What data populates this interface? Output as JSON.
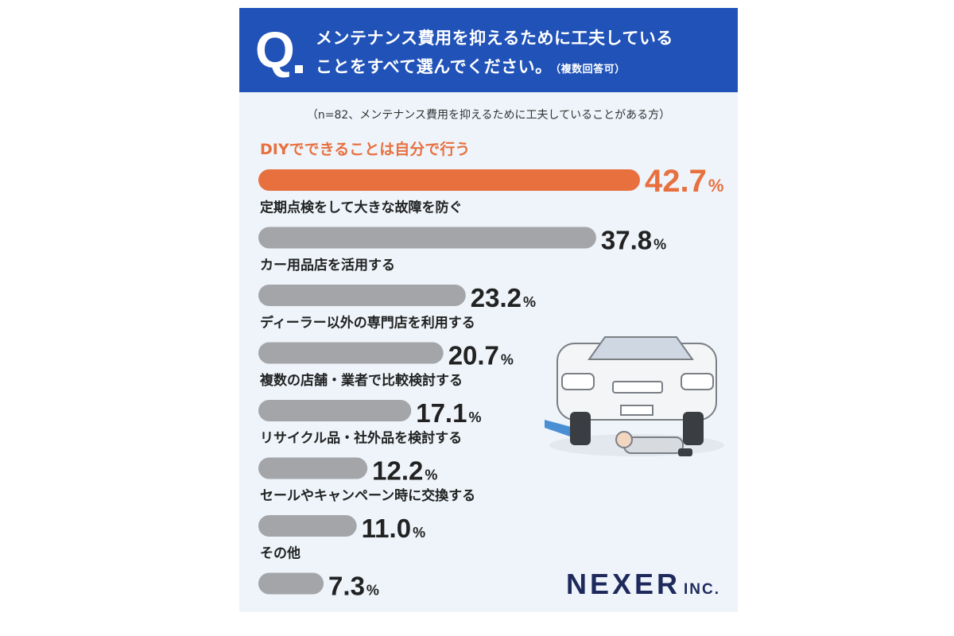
{
  "question": {
    "letter": "Q",
    "line1": "メンテナンス費用を抑えるために工夫している",
    "line2": "ことをすべて選んでください。",
    "note": "（複数回答可）"
  },
  "sample_note": "（n=82、メンテナンス費用を抑えるために工夫していることがある方）",
  "brand": {
    "main": "NEXER",
    "sub": "INC."
  },
  "colors": {
    "header_bg": "#2052b8",
    "card_bg": "#eef4fa",
    "highlight": "#e8703f",
    "bar": "#a3a5a9",
    "text": "#222222"
  },
  "chart_data": {
    "type": "bar",
    "orientation": "horizontal",
    "unit": "%",
    "categories": [
      "DIYでできることは自分で行う",
      "定期点検をして大きな故障を防ぐ",
      "カー用品店を活用する",
      "ディーラー以外の専門店を利用する",
      "複数の店舗・業者で比較検討する",
      "リサイクル品・社外品を検討する",
      "セールやキャンペーン時に交換する",
      "その他"
    ],
    "value_labels": [
      "42.7",
      "37.8",
      "23.2",
      "20.7",
      "17.1",
      "12.2",
      "11.0",
      "7.3"
    ],
    "values": [
      42.7,
      37.8,
      23.2,
      20.7,
      17.1,
      12.2,
      11.0,
      7.3
    ],
    "highlight_index": 0
  }
}
